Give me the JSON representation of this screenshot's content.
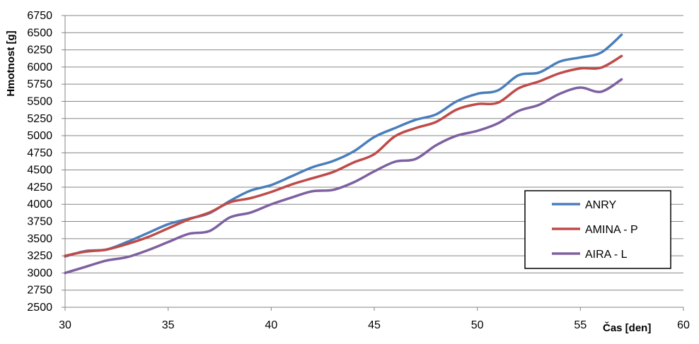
{
  "chart_data": {
    "type": "line",
    "title": "",
    "xlabel": "Čas [den]",
    "ylabel": "Hmotnost [g]",
    "xlim": [
      30,
      60
    ],
    "ylim": [
      2500,
      6750
    ],
    "x_ticks": [
      30,
      35,
      40,
      45,
      50,
      55,
      60
    ],
    "y_ticks": [
      2500,
      2750,
      3000,
      3250,
      3500,
      3750,
      4000,
      4250,
      4500,
      4750,
      5000,
      5250,
      5500,
      5750,
      6000,
      6250,
      6500,
      6750
    ],
    "grid": "horizontal",
    "legend": "right",
    "x": [
      30,
      31,
      32,
      33,
      34,
      35,
      36,
      37,
      38,
      39,
      40,
      41,
      42,
      43,
      44,
      45,
      46,
      47,
      48,
      49,
      50,
      51,
      52,
      53,
      54,
      55,
      56,
      57
    ],
    "series": [
      {
        "name": "ANRY",
        "color": "#4a7ebb",
        "values": [
          3240,
          3320,
          3340,
          3450,
          3580,
          3710,
          3790,
          3870,
          4050,
          4200,
          4280,
          4410,
          4540,
          4630,
          4770,
          4980,
          5110,
          5230,
          5310,
          5500,
          5610,
          5660,
          5880,
          5920,
          6080,
          6140,
          6210,
          6470
        ]
      },
      {
        "name": "AMINA - P",
        "color": "#be4b48",
        "values": [
          3250,
          3310,
          3340,
          3420,
          3520,
          3650,
          3780,
          3880,
          4030,
          4090,
          4180,
          4290,
          4380,
          4470,
          4610,
          4730,
          4990,
          5110,
          5200,
          5380,
          5460,
          5480,
          5690,
          5790,
          5910,
          5980,
          5990,
          6160
        ]
      },
      {
        "name": "AIRA - L",
        "color": "#7d60a0",
        "values": [
          3000,
          3090,
          3180,
          3230,
          3330,
          3450,
          3570,
          3610,
          3810,
          3880,
          4000,
          4100,
          4190,
          4210,
          4320,
          4480,
          4620,
          4660,
          4860,
          5000,
          5070,
          5180,
          5360,
          5450,
          5610,
          5700,
          5640,
          5820
        ]
      }
    ]
  }
}
